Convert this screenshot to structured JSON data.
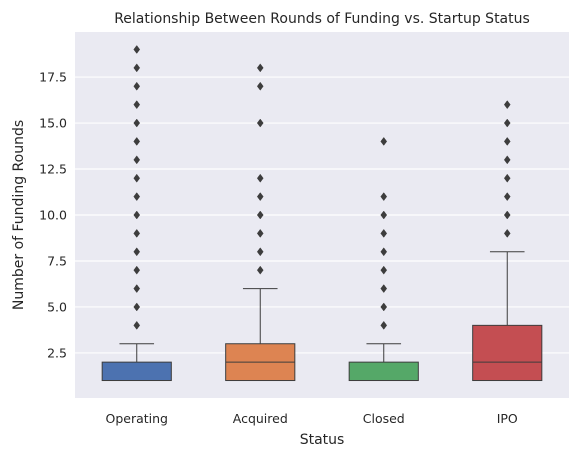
{
  "chart_data": {
    "type": "box",
    "title": "Relationship Between Rounds of Funding vs. Startup Status",
    "xlabel": "Status",
    "ylabel": "Number of Funding Rounds",
    "ylim": [
      0.05,
      19.95
    ],
    "yticks": [
      2.5,
      5.0,
      7.5,
      10.0,
      12.5,
      15.0,
      17.5
    ],
    "ytick_labels": [
      "2.5",
      "5.0",
      "7.5",
      "10.0",
      "12.5",
      "15.0",
      "17.5"
    ],
    "grid": true,
    "legend": "none",
    "categories": [
      "Operating",
      "Acquired",
      "Closed",
      "IPO"
    ],
    "boxes": [
      {
        "name": "Operating",
        "color": "#4c72b0",
        "whislo": 1,
        "q1": 1,
        "median": 1,
        "q3": 2,
        "whishi": 3,
        "fliers": [
          4,
          5,
          6,
          7,
          8,
          9,
          10,
          11,
          12,
          13,
          14,
          15,
          16,
          17,
          18,
          19
        ]
      },
      {
        "name": "Acquired",
        "color": "#dd8452",
        "whislo": 1,
        "q1": 1,
        "median": 2,
        "q3": 3,
        "whishi": 6,
        "fliers": [
          7,
          8,
          9,
          10,
          11,
          12,
          15,
          17,
          18
        ]
      },
      {
        "name": "Closed",
        "color": "#55a868",
        "whislo": 1,
        "q1": 1,
        "median": 1,
        "q3": 2,
        "whishi": 3,
        "fliers": [
          4,
          5,
          6,
          7,
          8,
          9,
          10,
          11,
          14
        ]
      },
      {
        "name": "IPO",
        "color": "#c44e52",
        "whislo": 1,
        "q1": 1,
        "median": 2,
        "q3": 4,
        "whishi": 8,
        "fliers": [
          9,
          10,
          11,
          12,
          13,
          14,
          15,
          16
        ]
      }
    ],
    "colors": {
      "background": "#eaeaf2",
      "grid": "#ffffff",
      "lines": "#3d3d3d"
    }
  }
}
